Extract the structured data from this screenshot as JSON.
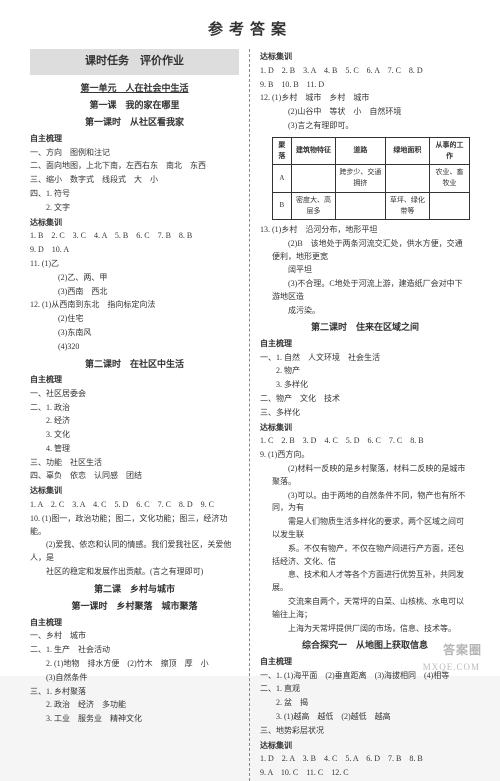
{
  "title": "参考答案",
  "banner": "课时任务　评价作业",
  "left": {
    "unit": "第一单元　人在社会中生活",
    "lesson1": "第一课　我的家在哪里",
    "period1": "第一课时　从社区看我家",
    "sect_zzsl": "自主梳理",
    "zzsl_lines": [
      "一、方向　图例和注记",
      "二、面向地图，上北下南，左西右东　南北　东西",
      "三、缩小　数字式　线段式　大　小",
      "四、1. 符号",
      "　　2. 文字"
    ],
    "sect_dbjx": "达标集训",
    "dbjx_lines": [
      "1. B　2. C　3. C　4. A　5. B　6. C　7. B　8. B",
      "9. D　10. A",
      "11. (1)乙",
      "　　(2)乙、两、甲",
      "　　(3)西南　西北",
      "12. (1)从西南到东北　指向标定向法",
      "　　(2)住宅",
      "　　(3)东南风",
      "　　(4)320"
    ],
    "period2": "第二课时　在社区中生活",
    "sect_zzsl2": "自主梳理",
    "zzsl2_lines": [
      "一、社区居委会",
      "二、1. 政治",
      "　　2. 经济",
      "　　3. 文化",
      "　　4. 管理",
      "三、功能　社区生活",
      "四、辜负　依恋　认同感　团结"
    ],
    "sect_dbjx2": "达标集训",
    "dbjx2_lines": [
      "1. A　2. C　3. A　4. C　5. D　6. C　7. C　8. D　9. C",
      "10. (1)图一，政治功能；图二，文化功能；图三，经济功能。",
      "　　(2)爱我、依恋和认同的情感。我们爱我社区，关爱他人，是",
      "　　社区的稳定和发展作出贡献。(言之有理即可)"
    ],
    "lesson2": "第二课　乡村与城市",
    "period3": "第一课时　乡村聚落　城市聚落",
    "sect_zzsl3": "自主梳理",
    "zzsl3_lines": [
      "一、乡村　城市",
      "二、1. 生产　社会活动",
      "　　2. (1)地物　排水方便　(2)竹木　擦顶　厚　小",
      "　　(3)自然条件",
      "三、1. 乡村聚落",
      "　　2. 政治　经济　多功能",
      "　　3. 工业　服务业　精神文化"
    ]
  },
  "right": {
    "sect_dbjx": "达标集训",
    "dbjx_lines": [
      "1. D　2. B　3. A　4. B　5. C　6. A　7. C　8. D",
      "9. B　10. B　11. D",
      "12. (1)乡村　城市　乡村　城市",
      "　　(2)山谷中　等状　小　自然环境",
      "　　(3)言之有理即可。"
    ],
    "table": {
      "headers": [
        "聚落",
        "建筑物特征",
        "道路",
        "绿地面积",
        "从事的工作"
      ],
      "rowA": [
        "A",
        "",
        "跨步少、交通拥挤",
        "",
        "农业、畜牧业"
      ],
      "rowB": [
        "B",
        "密度大、高层多",
        "",
        "草坪、绿化带等",
        ""
      ]
    },
    "q13_lines": [
      "13. (1)乡村　沿河分布，地形平坦",
      "　　(2)B　该地处于两条河流交汇处，供水方便，交通便利，地形更宽",
      "　　阔平坦",
      "　　(3)不合理。C地处于河流上游，建造纸厂会对中下游地区造",
      "　　成污染。"
    ],
    "period2": "第二课时　住来在区域之间",
    "sect_zzsl": "自主梳理",
    "zzsl_lines": [
      "一、1. 自然　人文环境　社会生活",
      "　　2. 物产",
      "　　3. 多样化",
      "二、物产　文化　技术",
      "三、多样化"
    ],
    "sect_dbjx2": "达标集训",
    "dbjx2_lines": [
      "1. C　2. B　3. D　4. C　5. D　6. C　7. C　8. B",
      "9. (1)西方向。",
      "　　(2)材料一反映的是乡村聚落，材料二反映的是城市聚落。",
      "　　(3)可以。由于两地的自然条件不同，物产也有所不同，为有",
      "　　需是人们物质生活多样化的要求，两个区域之间可以发生联",
      "　　系。不仅有物产，不仅在物产间进行产方面，还包括经济、文化、信",
      "　　息、技术和人才等各个方面进行优势互补，共同发展。",
      "　　交流来自两个，天常坪的白菜、山核桃、水电可以输往上海；",
      "　　上海为天常坪提供厂阔的市场，信息、技术等。"
    ],
    "period3": "综合探究一　从地图上获取信息",
    "sect_zzsl3": "自主梳理",
    "zzsl3_lines": [
      "一、1. (1)海平面　(2)垂直距离　(3)海拔相同　(4)相等",
      "二、1. 直观",
      "　　2. 盆　揭",
      "　　3. (1)越高　越低　(2)越低　越高",
      "三、地势彩层状况"
    ],
    "sect_dbjx3": "达标集训",
    "dbjx3_lines": [
      "1. D　2. A　3. B　4. C　5. A　6. D　7. B　8. B",
      "9. A　10. C　11. C　12. C"
    ]
  },
  "watermark": "答案圈",
  "wm_url": "MXQE.COM"
}
